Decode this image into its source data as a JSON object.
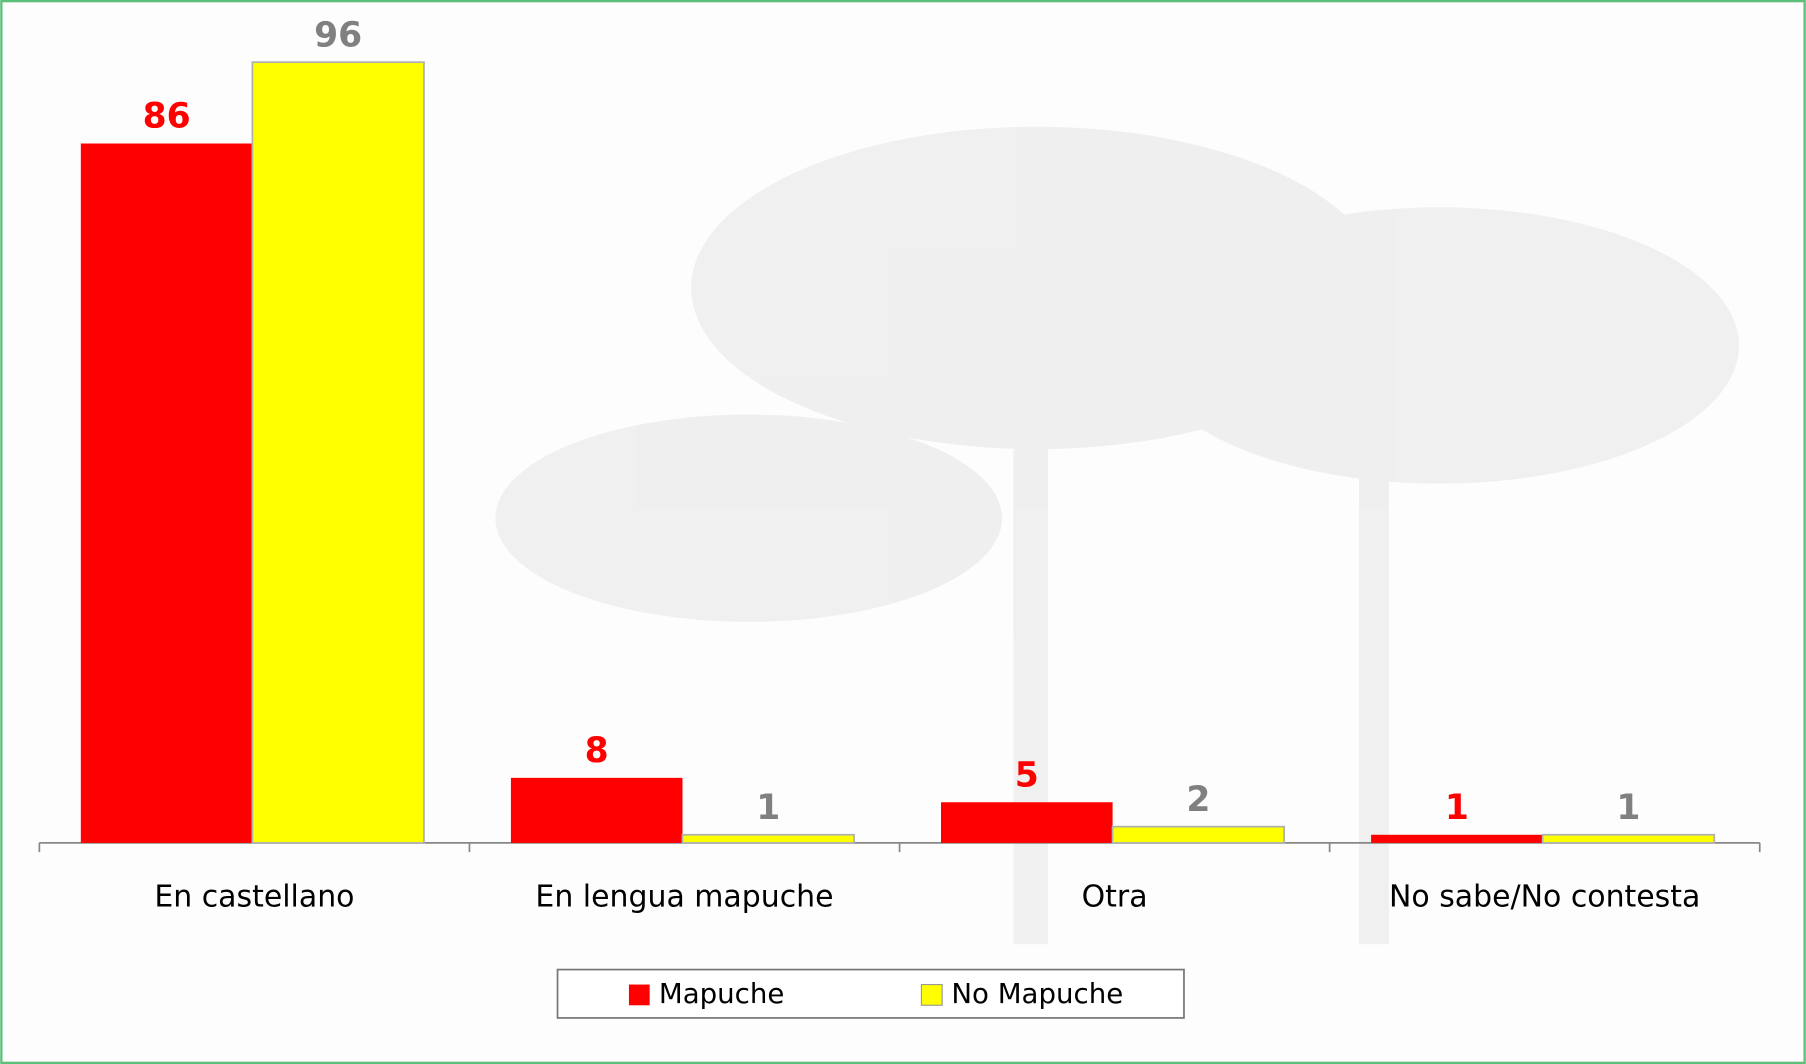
{
  "chart_data": {
    "type": "bar",
    "categories": [
      "En castellano",
      "En lengua mapuche",
      "Otra",
      "No sabe/No contesta"
    ],
    "series": [
      {
        "name": "Mapuche",
        "color": "#ff0000",
        "label_color": "#ff0000",
        "values": [
          86,
          8,
          5,
          1
        ]
      },
      {
        "name": "No Mapuche",
        "color": "#ffff00",
        "label_color": "#808080",
        "values": [
          96,
          1,
          2,
          1
        ]
      }
    ],
    "legend": "bottom"
  }
}
